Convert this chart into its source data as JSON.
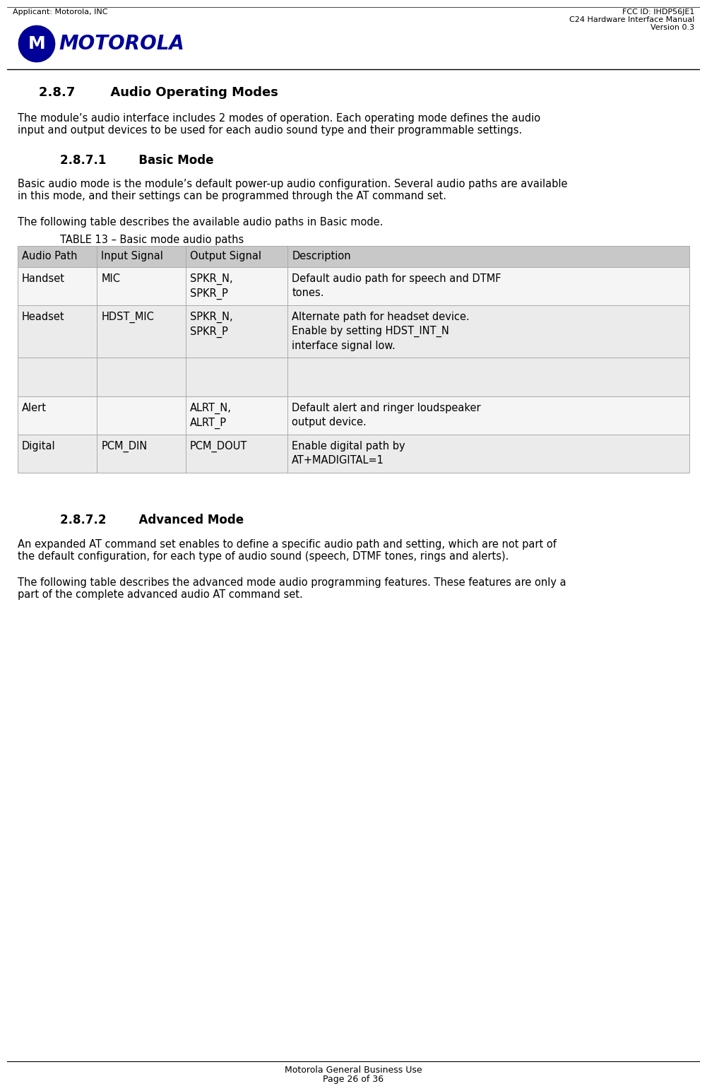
{
  "header_left": "Applicant: Motorola, INC",
  "header_right_line1": "FCC ID: IHDP56JE1",
  "header_right_line2": "C24 Hardware Interface Manual",
  "header_right_line3": "Version 0.3",
  "section_title": "2.8.7        Audio Operating Modes",
  "section_intro_1": "The module’s audio interface includes 2 modes of operation. Each operating mode defines the audio",
  "section_intro_2": "input and output devices to be used for each audio sound type and their programmable settings.",
  "subsection1_title": "2.8.7.1        Basic Mode",
  "sub1_para1_1": "Basic audio mode is the module’s default power-up audio configuration. Several audio paths are available",
  "sub1_para1_2": "in this mode, and their settings can be programmed through the AT command set.",
  "sub1_para2": "The following table describes the available audio paths in Basic mode.",
  "table_title": "TABLE 13 – Basic mode audio paths",
  "table_headers": [
    "Audio Path",
    "Input Signal",
    "Output Signal",
    "Description"
  ],
  "table_rows": [
    [
      "Handset",
      "MIC",
      "SPKR_N,\nSPKR_P",
      "Default audio path for speech and DTMF\ntones."
    ],
    [
      "Headset",
      "HDST_MIC",
      "SPKR_N,\nSPKR_P",
      "Alternate path for headset device.\nEnable by setting HDST_INT_N\ninterface signal low."
    ],
    [
      "",
      "",
      "",
      ""
    ],
    [
      "Alert",
      "",
      "ALRT_N,\nALRT_P",
      "Default alert and ringer loudspeaker\noutput device."
    ],
    [
      "Digital",
      "PCM_DIN",
      "PCM_DOUT",
      "Enable digital path by\nAT+MADIGITAL=1"
    ]
  ],
  "subsection2_title": "2.8.7.2        Advanced Mode",
  "sub2_para1_1": "An expanded AT command set enables to define a specific audio path and setting, which are not part of",
  "sub2_para1_2": "the default configuration, for each type of audio sound (speech, DTMF tones, rings and alerts).",
  "sub2_para2_1": "The following table describes the advanced mode audio programming features. These features are only a",
  "sub2_para2_2": "part of the complete advanced audio AT command set.",
  "footer_line1": "Motorola General Business Use",
  "footer_line2": "Page 26 of 36",
  "bg_color": "#ffffff",
  "table_header_bg": "#c8c8c8",
  "row_bg_even": "#ebebeb",
  "row_bg_odd": "#f5f5f5",
  "motorola_blue": "#000080",
  "border_color": "#aaaaaa",
  "text_color": "#000000"
}
